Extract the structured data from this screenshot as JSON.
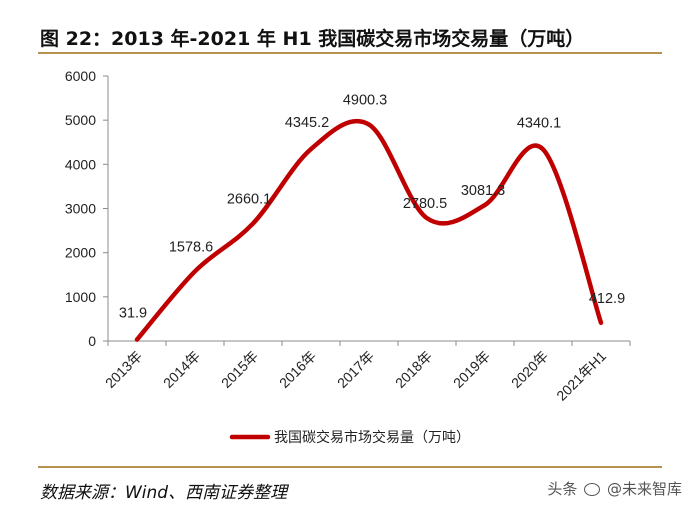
{
  "figure": {
    "title": "图 22：2013 年-2021 年 H1 我国碳交易市场交易量（万吨）",
    "source": "数据来源：Wind、西南证券整理",
    "watermark_prefix": "头条",
    "watermark_name": "@未来智库"
  },
  "chart_data": {
    "type": "line",
    "categories": [
      "2013年",
      "2014年",
      "2015年",
      "2016年",
      "2017年",
      "2018年",
      "2019年",
      "2020年",
      "2021年H1"
    ],
    "series": [
      {
        "name": "我国碳交易市场交易量（万吨）",
        "values": [
          31.9,
          1578.6,
          2660.1,
          4345.2,
          4900.3,
          2780.5,
          3081.3,
          4340.1,
          412.9
        ],
        "color": "#c00000"
      }
    ],
    "data_labels": [
      "31.9",
      "1578.6",
      "2660.1",
      "4345.2",
      "4900.3",
      "2780.5",
      "3081.3",
      "4340.1",
      "412.9"
    ],
    "yticks": [
      "0",
      "1000",
      "2000",
      "3000",
      "4000",
      "5000",
      "6000"
    ],
    "ylim": [
      0,
      6000
    ],
    "smooth": true,
    "grid": false,
    "legend_position": "bottom"
  }
}
